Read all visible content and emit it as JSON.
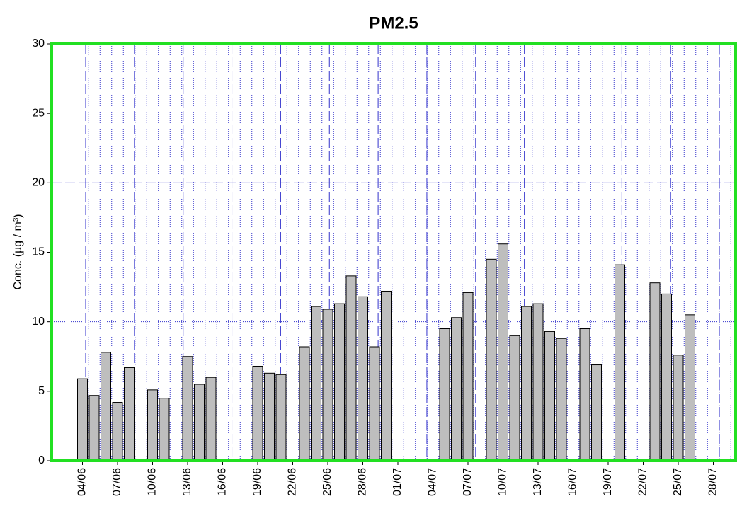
{
  "chart_data": {
    "type": "bar",
    "title": "PM2.5",
    "y_label": "Conc. (µg / m³)",
    "categories": [
      "04/06",
      null,
      null,
      "07/06",
      null,
      null,
      "10/06",
      null,
      null,
      "13/06",
      null,
      null,
      "16/06",
      null,
      null,
      "19/06",
      null,
      null,
      "22/06",
      null,
      null,
      "25/06",
      null,
      null,
      "28/06",
      null,
      null,
      "01/07",
      null,
      null,
      "04/07",
      null,
      null,
      "07/07",
      null,
      null,
      "10/07",
      null,
      null,
      "13/07",
      null,
      null,
      "16/07",
      null,
      null,
      "19/07",
      null,
      null,
      "22/07",
      null,
      null,
      "25/07",
      null,
      null,
      "28/07",
      null
    ],
    "values": [
      5.9,
      4.7,
      7.8,
      4.2,
      6.7,
      null,
      5.1,
      4.5,
      null,
      7.5,
      5.5,
      6.0,
      null,
      null,
      null,
      6.8,
      6.3,
      6.2,
      null,
      8.2,
      11.1,
      10.9,
      11.3,
      13.3,
      11.8,
      8.2,
      12.2,
      null,
      null,
      null,
      null,
      9.5,
      10.3,
      12.1,
      null,
      14.5,
      15.6,
      9.0,
      11.1,
      11.3,
      9.3,
      8.8,
      null,
      9.5,
      6.9,
      null,
      14.1,
      null,
      null,
      12.8,
      12.0,
      7.6,
      10.5,
      null,
      null,
      null
    ],
    "color": "#bebebe",
    "frame_color": "#22e022",
    "grid_color": "#3333cc",
    "ylim": [
      0,
      30
    ],
    "yticks": [
      0,
      5,
      10,
      15,
      20,
      25,
      30
    ],
    "grid": true
  }
}
